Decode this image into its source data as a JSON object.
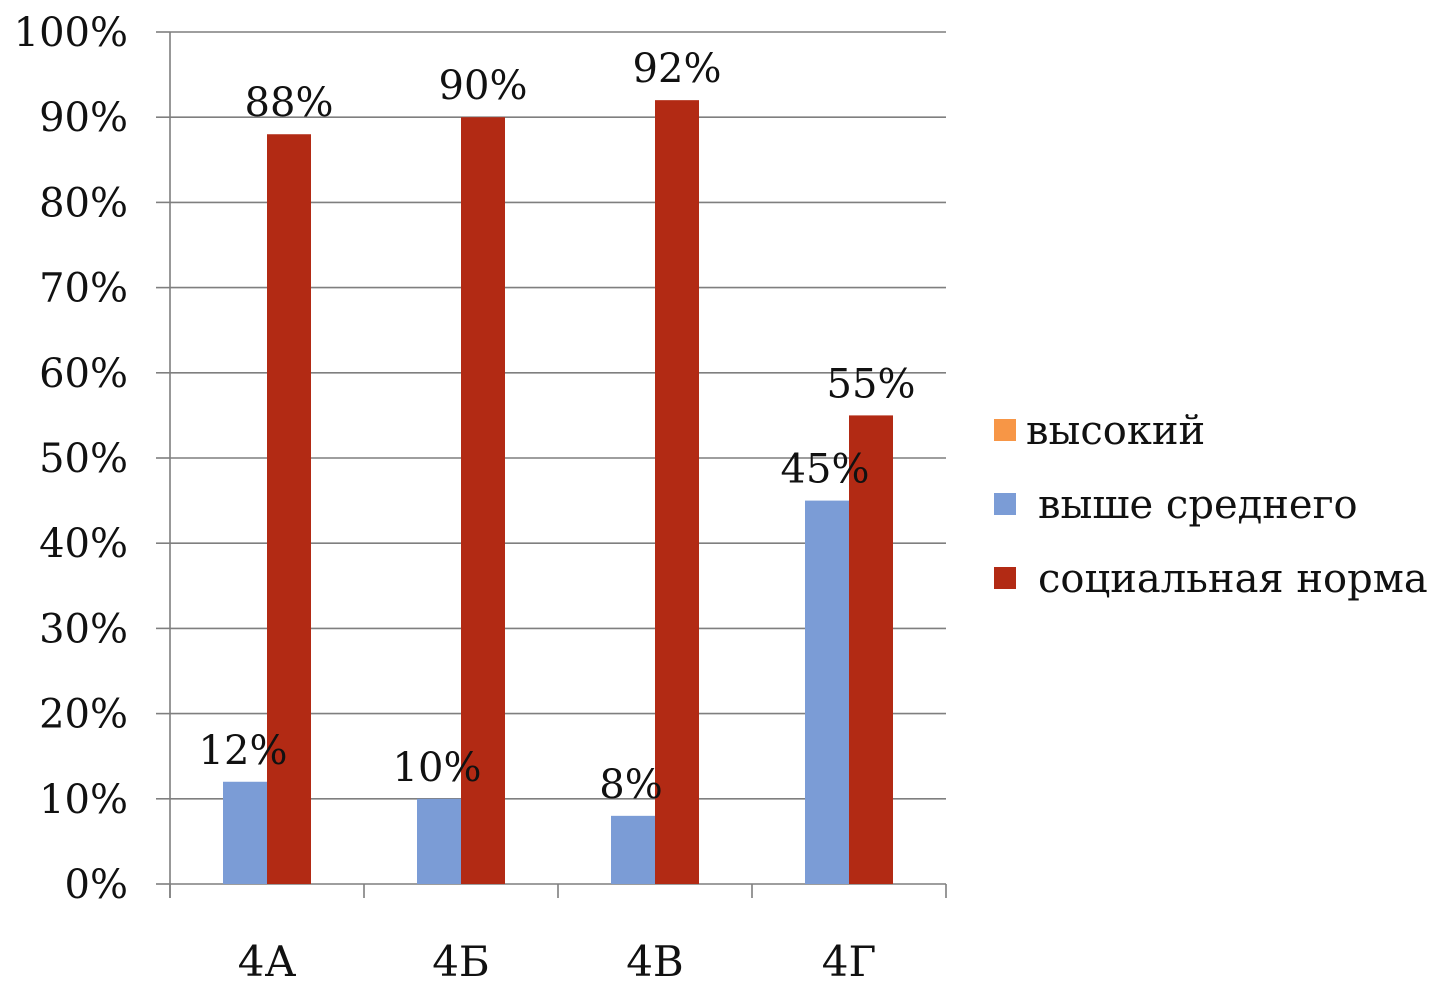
{
  "chart_data": {
    "type": "bar",
    "categories": [
      "4А",
      "4Б",
      "4В",
      "4Г"
    ],
    "series": [
      {
        "name": "высокий",
        "values": [
          0,
          0,
          0,
          0
        ],
        "color": "#f79646"
      },
      {
        "name": "выше среднего",
        "values": [
          12,
          10,
          8,
          45
        ],
        "color": "#7b9cd6",
        "labels": [
          "12%",
          "10%",
          "8%",
          "45%"
        ]
      },
      {
        "name": "социальная норма",
        "values": [
          88,
          90,
          92,
          55
        ],
        "color": "#b22a14",
        "labels": [
          "88%",
          "90%",
          "92%",
          "55%"
        ]
      }
    ],
    "y_ticks": [
      "0%",
      "10%",
      "20%",
      "30%",
      "40%",
      "50%",
      "60%",
      "70%",
      "80%",
      "90%",
      "100%"
    ],
    "ylim": [
      0,
      100
    ],
    "grid": true,
    "legend_position": "right"
  }
}
